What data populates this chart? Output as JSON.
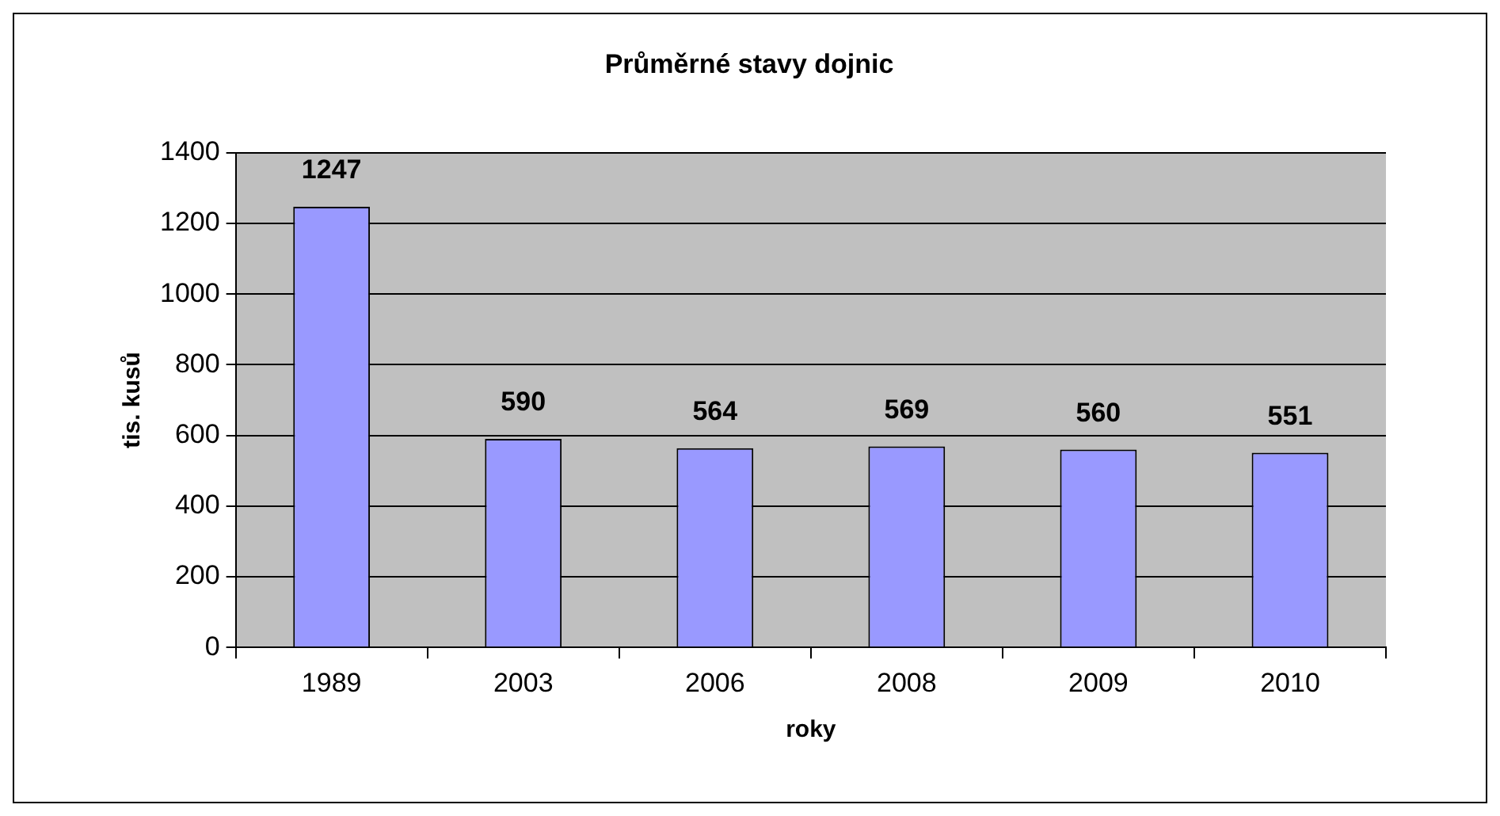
{
  "chart_data": {
    "type": "bar",
    "title": "Průměrné stavy dojnic",
    "xlabel": "roky",
    "ylabel": "tis. kusů",
    "categories": [
      "1989",
      "2003",
      "2006",
      "2008",
      "2009",
      "2010"
    ],
    "values": [
      1247,
      590,
      564,
      569,
      560,
      551
    ],
    "color": "#9999ff",
    "ylim": [
      0,
      1400
    ],
    "yticks": [
      0,
      200,
      400,
      600,
      800,
      1000,
      1200,
      1400
    ],
    "grid": "y",
    "legend": false,
    "data_labels": true
  }
}
